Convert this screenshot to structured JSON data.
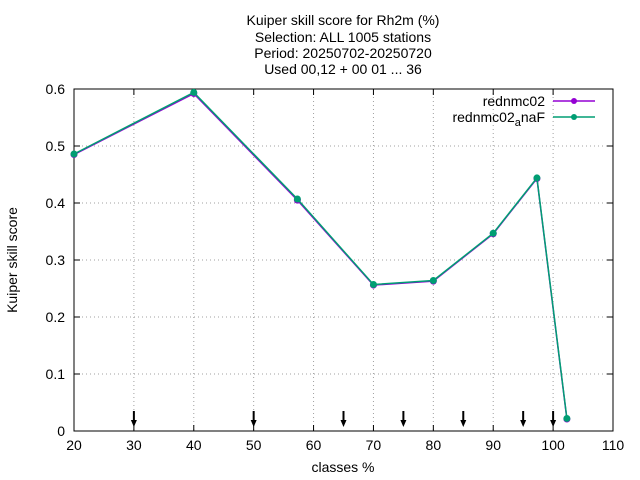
{
  "chart_data": {
    "type": "line",
    "title_lines": [
      "Kuiper skill score  for Rh2m (%)",
      "Selection: ALL   1005 stations",
      "Period: 20250702-20250720",
      "Used 00,12 + 00 01 ... 36"
    ],
    "xlabel": "classes %",
    "ylabel": "Kuiper skill score",
    "xlim": [
      20,
      110
    ],
    "ylim": [
      0,
      0.6
    ],
    "xticks": [
      "20",
      "30",
      "40",
      "50",
      "60",
      "70",
      "80",
      "90",
      "100",
      "110"
    ],
    "yticks": [
      "0",
      "0.1",
      "0.2",
      "0.3",
      "0.4",
      "0.5",
      "0.6"
    ],
    "grid": true,
    "legend_position": "top-right",
    "series": [
      {
        "name": "rednmc02",
        "color": "#9400d3",
        "x": [
          20,
          40,
          57.3,
          70,
          80,
          90,
          97.3,
          102.3
        ],
        "y": [
          0.485,
          0.592,
          0.405,
          0.256,
          0.263,
          0.346,
          0.443,
          0.021
        ]
      },
      {
        "name_main": "rednmc02",
        "name_sub": "a",
        "name_tail": "naF",
        "color": "#009e73",
        "x": [
          20,
          40,
          57.3,
          70,
          80,
          90,
          97.3,
          102.3
        ],
        "y": [
          0.486,
          0.594,
          0.407,
          0.257,
          0.264,
          0.347,
          0.444,
          0.022
        ]
      }
    ],
    "markers_x": [
      30,
      50,
      65,
      75,
      85,
      95,
      100
    ]
  }
}
